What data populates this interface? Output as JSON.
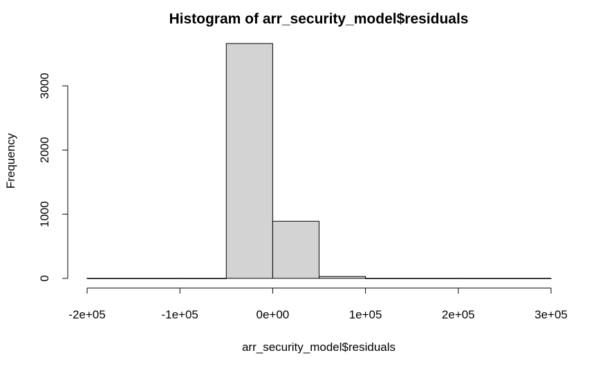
{
  "chart_data": {
    "type": "bar",
    "title": "Histogram of arr_security_model$residuals",
    "xlabel": "arr_security_model$residuals",
    "ylabel": "Frequency",
    "bin_edges": [
      -200000,
      -150000,
      -100000,
      -50000,
      0,
      50000,
      100000,
      150000,
      200000,
      250000,
      300000
    ],
    "values": [
      1,
      1,
      1,
      3660,
      890,
      30,
      1,
      1,
      1,
      1
    ],
    "xlim": [
      -200000,
      300000
    ],
    "ylim": [
      0,
      3660
    ],
    "x_ticks": [
      -200000,
      -100000,
      0,
      100000,
      200000,
      300000
    ],
    "x_tick_labels": [
      "-2e+05",
      "-1e+05",
      "0e+00",
      "1e+05",
      "2e+05",
      "3e+05"
    ],
    "y_ticks": [
      0,
      1000,
      2000,
      3000
    ],
    "y_tick_labels": [
      "0",
      "1000",
      "2000",
      "3000"
    ],
    "bar_fill": "#d3d3d3",
    "bar_stroke": "#000000",
    "grid": false,
    "legend": "none"
  }
}
